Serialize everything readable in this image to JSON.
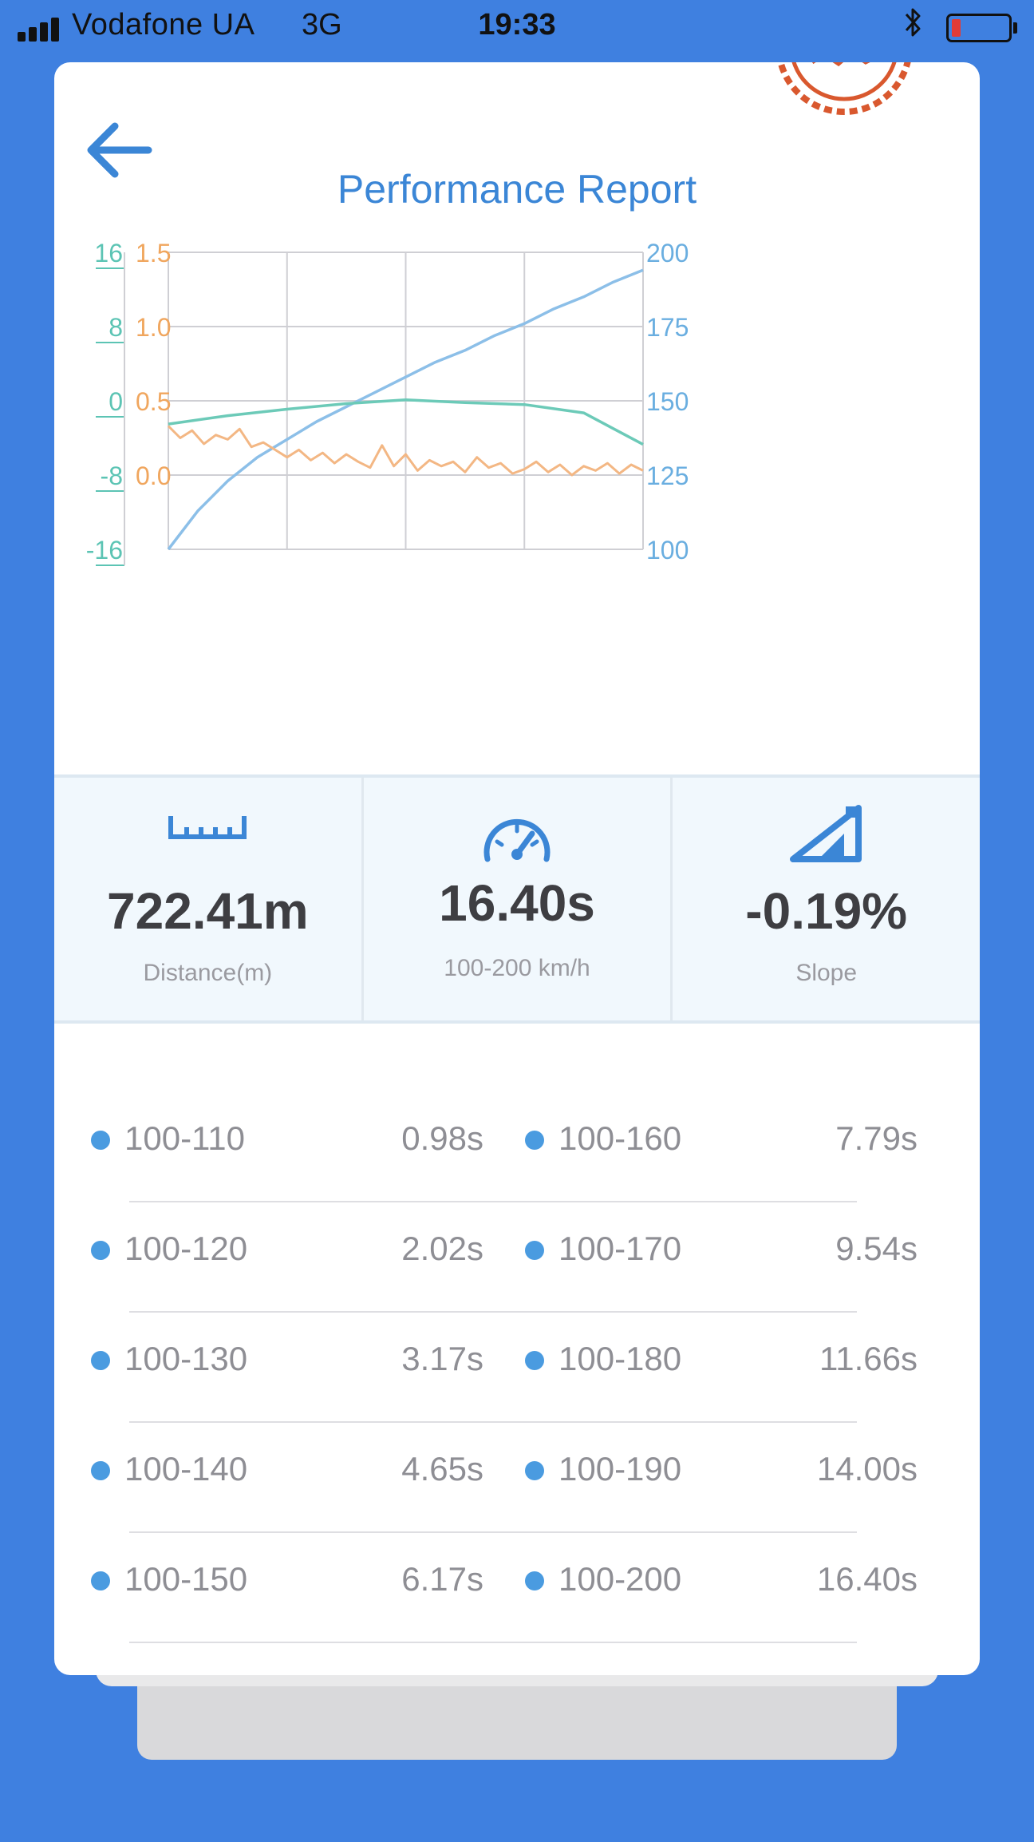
{
  "status_bar": {
    "carrier": "Vodafone UA",
    "network": "3G",
    "time": "19:33",
    "battery_level": 0.15
  },
  "header": {
    "title": "Performance Report",
    "back_icon": "arrow-left-icon"
  },
  "chart_data": {
    "type": "line",
    "x": [
      0,
      1,
      2,
      3,
      4
    ],
    "axes": {
      "left_outer": {
        "ticks": [
          "16",
          "8",
          "0",
          "-8",
          "-16"
        ],
        "range": [
          -16,
          16
        ],
        "color": "#5cc4b4"
      },
      "left_inner": {
        "ticks": [
          "1.5",
          "1.0",
          "0.5",
          "0.0"
        ],
        "range": [
          -0.5,
          1.5
        ],
        "color": "#f0a65e"
      },
      "right": {
        "ticks": [
          "200",
          "175",
          "150",
          "125",
          "100"
        ],
        "range": [
          100,
          200
        ],
        "color": "#6aaee0"
      }
    },
    "series": [
      {
        "axis": "right",
        "color": "#8cbfe8",
        "x": [
          0,
          0.25,
          0.5,
          0.75,
          1.0,
          1.25,
          1.5,
          1.75,
          2.0,
          2.25,
          2.5,
          2.75,
          3.0,
          3.25,
          3.5,
          3.75,
          4.0
        ],
        "values": [
          100,
          113,
          123,
          131,
          137,
          143,
          148,
          153,
          158,
          163,
          167,
          172,
          176,
          181,
          185,
          190,
          194
        ]
      },
      {
        "axis": "left_outer",
        "color": "#6ccab8",
        "x": [
          0,
          0.5,
          1.0,
          1.5,
          2.0,
          2.5,
          3.0,
          3.5,
          4.0
        ],
        "values": [
          -2.5,
          -1.6,
          -0.9,
          -0.3,
          0.1,
          -0.2,
          -0.4,
          -1.3,
          -4.7
        ]
      },
      {
        "axis": "left_inner",
        "color": "#f3b784",
        "x": [
          0,
          0.1,
          0.2,
          0.3,
          0.4,
          0.5,
          0.6,
          0.7,
          0.8,
          0.9,
          1.0,
          1.1,
          1.2,
          1.3,
          1.4,
          1.5,
          1.6,
          1.7,
          1.8,
          1.9,
          2.0,
          2.1,
          2.2,
          2.3,
          2.4,
          2.5,
          2.6,
          2.7,
          2.8,
          2.9,
          3.0,
          3.1,
          3.2,
          3.3,
          3.4,
          3.5,
          3.6,
          3.7,
          3.8,
          3.9,
          4.0
        ],
        "values": [
          0.33,
          0.25,
          0.3,
          0.21,
          0.27,
          0.24,
          0.31,
          0.19,
          0.22,
          0.17,
          0.12,
          0.17,
          0.1,
          0.15,
          0.08,
          0.14,
          0.09,
          0.05,
          0.2,
          0.06,
          0.14,
          0.03,
          0.1,
          0.06,
          0.09,
          0.02,
          0.12,
          0.05,
          0.08,
          0.01,
          0.04,
          0.09,
          0.02,
          0.07,
          0.0,
          0.06,
          0.03,
          0.08,
          0.01,
          0.07,
          0.03
        ]
      }
    ],
    "grid": true,
    "xlabel": "",
    "ylabel": ""
  },
  "stats": [
    {
      "icon": "ruler-icon",
      "value": "722.41m",
      "label": "Distance(m)"
    },
    {
      "icon": "speedometer-icon",
      "value": "16.40s",
      "label": "100-200 km/h"
    },
    {
      "icon": "slope-icon",
      "value": "-0.19%",
      "label": "Slope"
    }
  ],
  "splits": {
    "left": [
      {
        "range": "100-110",
        "time": "0.98s"
      },
      {
        "range": "100-120",
        "time": "2.02s"
      },
      {
        "range": "100-130",
        "time": "3.17s"
      },
      {
        "range": "100-140",
        "time": "4.65s"
      },
      {
        "range": "100-150",
        "time": "6.17s"
      }
    ],
    "right": [
      {
        "range": "100-160",
        "time": "7.79s"
      },
      {
        "range": "100-170",
        "time": "9.54s"
      },
      {
        "range": "100-180",
        "time": "11.66s"
      },
      {
        "range": "100-190",
        "time": "14.00s"
      },
      {
        "range": "100-200",
        "time": "16.40s"
      }
    ]
  },
  "colors": {
    "background": "#3f80e0",
    "accent": "#3b86d6",
    "dot": "#4a9be0"
  }
}
